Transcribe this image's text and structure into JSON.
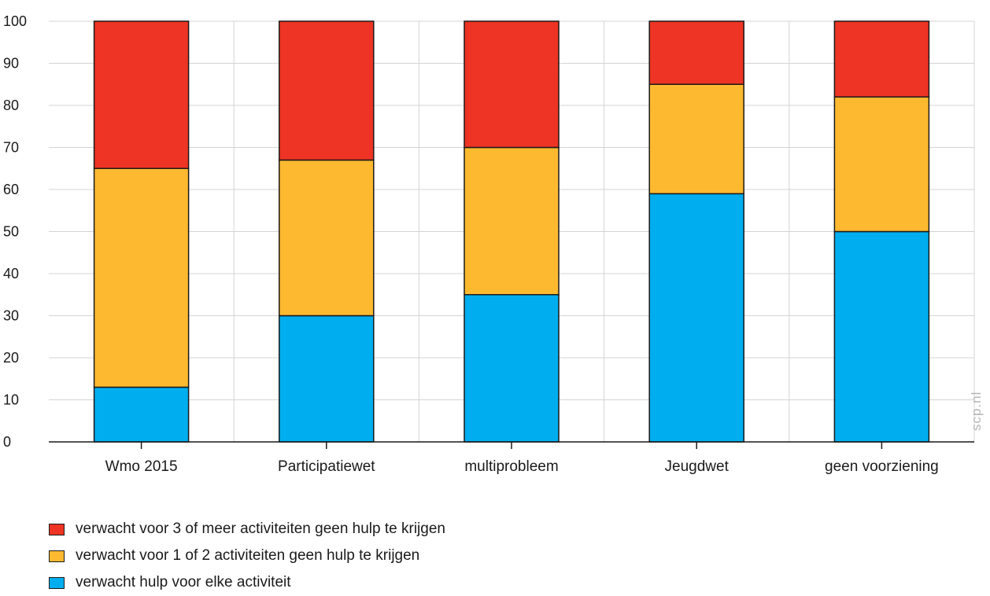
{
  "chart_data": {
    "type": "bar",
    "stacked": true,
    "categories": [
      "Wmo 2015",
      "Participatiewet",
      "multiprobleem",
      "Jeugdwet",
      "geen voorziening"
    ],
    "series": [
      {
        "name": "verwacht hulp voor elke activiteit",
        "color": "#00aeef",
        "values": [
          13,
          30,
          35,
          59,
          50
        ]
      },
      {
        "name": "verwacht voor 1 of 2 activiteiten geen hulp te krijgen",
        "color": "#fdb930",
        "values": [
          52,
          37,
          35,
          26,
          32
        ]
      },
      {
        "name": "verwacht voor 3 of meer activiteiten geen hulp te krijgen",
        "color": "#ee3424",
        "values": [
          35,
          33,
          30,
          15,
          18
        ]
      }
    ],
    "ylim": [
      0,
      100
    ],
    "yticks": [
      "0",
      "10",
      "20",
      "30",
      "40",
      "50",
      "60",
      "70",
      "80",
      "90",
      "100"
    ],
    "grid": true,
    "legend_position": "bottom-left"
  },
  "legend_order": [
    2,
    1,
    0
  ],
  "watermark": "scp.nl"
}
